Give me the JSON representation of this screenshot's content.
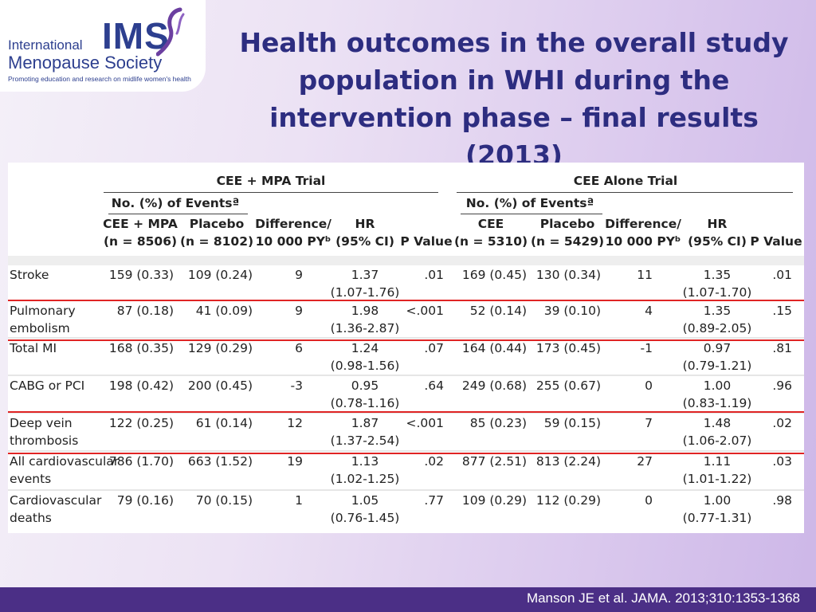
{
  "logo": {
    "line1": "International",
    "acronym": "IMS",
    "line2": "Menopause Society",
    "tagline": "Promoting education and research on midlife women's health"
  },
  "title": "Health outcomes in the overall study population in WHI during the intervention phase – final results (2013)",
  "table": {
    "trial1": "CEE + MPA Trial",
    "trial2": "CEE Alone Trial",
    "events_header": "No. (%) of Eventsª",
    "columns": {
      "cee_mpa": [
        "CEE + MPA",
        "(n = 8506)"
      ],
      "placebo1": [
        "Placebo",
        "(n = 8102)"
      ],
      "diff1": [
        "Difference/",
        "10 000 PYᵇ"
      ],
      "hr1": [
        "HR",
        "(95% CI)"
      ],
      "p1": "P Value",
      "cee": [
        "CEE",
        "(n = 5310)"
      ],
      "placebo2": [
        "Placebo",
        "(n = 5429)"
      ],
      "diff2": [
        "Difference/",
        "10 000 PYᵇ"
      ],
      "hr2": [
        "HR",
        "(95% CI)"
      ],
      "p2": "P Value"
    },
    "rows": [
      {
        "outcome": [
          "Stroke",
          ""
        ],
        "a1": "159 (0.33)",
        "b1": "109 (0.24)",
        "d1": "9",
        "hr1": "1.37",
        "ci1": "(1.07-1.76)",
        "p1": ".01",
        "a2": "169 (0.45)",
        "b2": "130 (0.34)",
        "d2": "11",
        "hr2": "1.35",
        "ci2": "(1.07-1.70)",
        "p2": ".01"
      },
      {
        "outcome": [
          "Pulmonary",
          "embolism"
        ],
        "a1": "87 (0.18)",
        "b1": "41 (0.09)",
        "d1": "9",
        "hr1": "1.98",
        "ci1": "(1.36-2.87)",
        "p1": "<.001",
        "a2": "52 (0.14)",
        "b2": "39 (0.10)",
        "d2": "4",
        "hr2": "1.35",
        "ci2": "(0.89-2.05)",
        "p2": ".15"
      },
      {
        "outcome": [
          "Total MI",
          ""
        ],
        "a1": "168 (0.35)",
        "b1": "129 (0.29)",
        "d1": "6",
        "hr1": "1.24",
        "ci1": "(0.98-1.56)",
        "p1": ".07",
        "a2": "164 (0.44)",
        "b2": "173 (0.45)",
        "d2": "-1",
        "hr2": "0.97",
        "ci2": "(0.79-1.21)",
        "p2": ".81"
      },
      {
        "outcome": [
          "CABG or PCI",
          ""
        ],
        "a1": "198 (0.42)",
        "b1": "200 (0.45)",
        "d1": "-3",
        "hr1": "0.95",
        "ci1": "(0.78-1.16)",
        "p1": ".64",
        "a2": "249 (0.68)",
        "b2": "255 (0.67)",
        "d2": "0",
        "hr2": "1.00",
        "ci2": "(0.83-1.19)",
        "p2": ".96"
      },
      {
        "outcome": [
          "Deep vein",
          "thrombosis"
        ],
        "a1": "122 (0.25)",
        "b1": "61 (0.14)",
        "d1": "12",
        "hr1": "1.87",
        "ci1": "(1.37-2.54)",
        "p1": "<.001",
        "a2": "85 (0.23)",
        "b2": "59 (0.15)",
        "d2": "7",
        "hr2": "1.48",
        "ci2": "(1.06-2.07)",
        "p2": ".02"
      },
      {
        "outcome": [
          "All cardiovascular",
          "events"
        ],
        "a1": "786 (1.70)",
        "b1": "663 (1.52)",
        "d1": "19",
        "hr1": "1.13",
        "ci1": "(1.02-1.25)",
        "p1": ".02",
        "a2": "877 (2.51)",
        "b2": "813 (2.24)",
        "d2": "27",
        "hr2": "1.11",
        "ci2": "(1.01-1.22)",
        "p2": ".03"
      },
      {
        "outcome": [
          "Cardiovascular",
          "deaths"
        ],
        "a1": "79 (0.16)",
        "b1": "70 (0.15)",
        "d1": "1",
        "hr1": "1.05",
        "ci1": "(0.76-1.45)",
        "p1": ".77",
        "a2": "109 (0.29)",
        "b2": "112 (0.29)",
        "d2": "0",
        "hr2": "1.00",
        "ci2": "(0.77-1.31)",
        "p2": ".98"
      }
    ]
  },
  "highlight_color": "#e02424",
  "brand_color": "#2d3f8f",
  "citation": "Manson JE et al. JAMA. 2013;310:1353-1368"
}
